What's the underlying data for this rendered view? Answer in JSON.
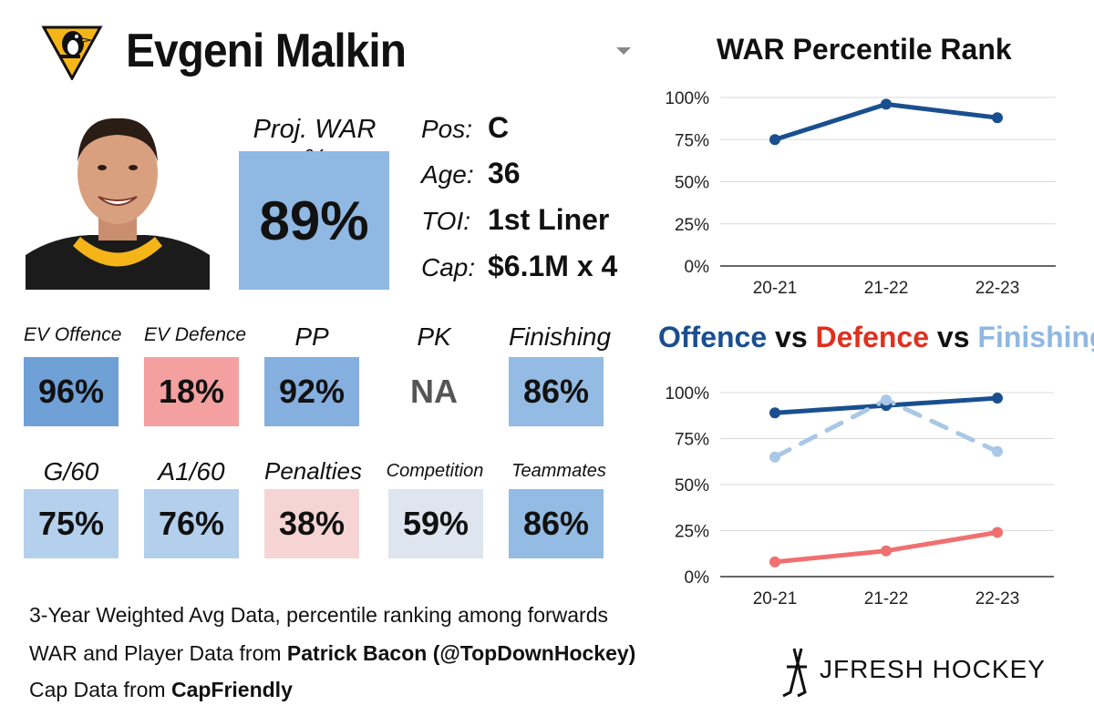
{
  "header": {
    "player_name": "Evgeni Malkin",
    "team_logo_icon": "penguins-logo"
  },
  "projection": {
    "label": "Proj. WAR %",
    "value": "89%",
    "color": "#8fb8e2"
  },
  "info": [
    {
      "label": "Pos:",
      "value": "C"
    },
    {
      "label": "Age:",
      "value": "36"
    },
    {
      "label": "TOI:",
      "value": "1st Liner"
    },
    {
      "label": "Cap:",
      "value": "$6.1M x 4"
    }
  ],
  "metrics_row1": [
    {
      "label": "EV Offence",
      "value": "96%",
      "color": "#6fa0d6"
    },
    {
      "label": "EV Defence",
      "value": "18%",
      "color": "#f4a0a0"
    },
    {
      "label": "PP",
      "value": "92%",
      "color": "#84afdf"
    },
    {
      "label": "PK",
      "value": "NA",
      "color": "#ffffff"
    },
    {
      "label": "Finishing",
      "value": "86%",
      "color": "#93bbe3"
    }
  ],
  "metrics_row2": [
    {
      "label": "G/60",
      "value": "75%",
      "color": "#b5d0ec"
    },
    {
      "label": "A1/60",
      "value": "76%",
      "color": "#b3cfec"
    },
    {
      "label": "Penalties",
      "value": "38%",
      "color": "#f6d4d4"
    },
    {
      "label": "Competition",
      "value": "59%",
      "color": "#dee5ef"
    },
    {
      "label": "Teammates",
      "value": "86%",
      "color": "#93bbe3"
    }
  ],
  "footer": {
    "line1": "3-Year Weighted Avg Data, percentile ranking among forwards",
    "line2_prefix": "WAR and Player Data from ",
    "line2_bold": "Patrick Bacon (@TopDownHockey)",
    "line3_prefix": "Cap Data from ",
    "line3_bold": "CapFriendly"
  },
  "brand": {
    "name": "JFRESH HOCKEY"
  },
  "colors": {
    "offence": "#1a4f8f",
    "defence": "#f07070",
    "finishing": "#a9c8e6",
    "defence_title": "#e0301e",
    "finishing_title": "#8fb8e2"
  },
  "chart_data": [
    {
      "type": "line",
      "title": "WAR Percentile Rank",
      "categories": [
        "20-21",
        "21-22",
        "22-23"
      ],
      "series": [
        {
          "values": [
            75,
            96,
            88
          ],
          "color": "#1a4f8f"
        }
      ],
      "ylim": [
        0,
        100
      ],
      "yticks": [
        "0%",
        "25%",
        "50%",
        "75%",
        "100%"
      ],
      "grid": true
    },
    {
      "type": "line",
      "title_parts": [
        "Offence",
        "vs",
        "Defence",
        "vs",
        "Finishing"
      ],
      "categories": [
        "20-21",
        "21-22",
        "22-23"
      ],
      "series": [
        {
          "name": "Offence",
          "values": [
            89,
            93,
            97
          ],
          "color": "#1a4f8f",
          "dashed": false
        },
        {
          "name": "Defence",
          "values": [
            8,
            14,
            24
          ],
          "color": "#f07070",
          "dashed": false
        },
        {
          "name": "Finishing",
          "values": [
            65,
            96,
            68
          ],
          "color": "#a9c8e6",
          "dashed": true
        }
      ],
      "ylim": [
        0,
        100
      ],
      "yticks": [
        "0%",
        "25%",
        "50%",
        "75%",
        "100%"
      ],
      "grid": true
    }
  ]
}
